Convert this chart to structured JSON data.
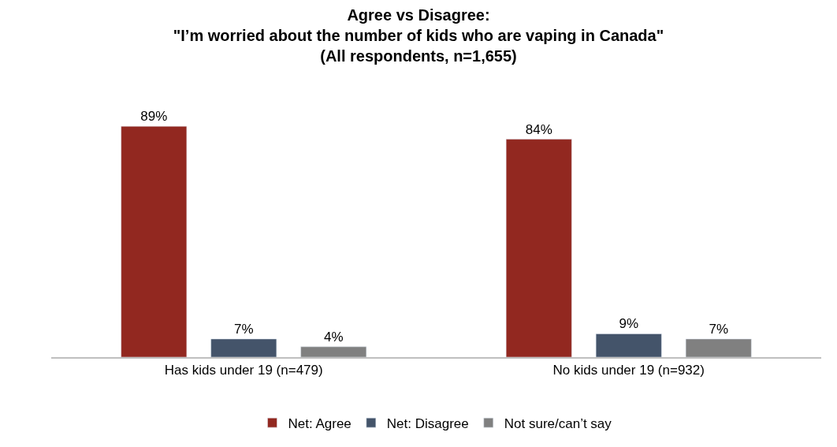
{
  "chart_data": {
    "type": "bar",
    "title": "Agree vs Disagree:\n\"I’m worried about the number of kids who are vaping in Canada\"\n(All respondents, n=1,655)",
    "categories": [
      "Has kids under 19 (n=479)",
      "No kids under 19 (n=932)"
    ],
    "series": [
      {
        "name": "Net: Agree",
        "color": "#922820",
        "values": [
          89,
          84
        ],
        "value_labels": [
          "89%",
          "84%"
        ]
      },
      {
        "name": "Net: Disagree",
        "color": "#44546a",
        "values": [
          7,
          9
        ],
        "value_labels": [
          "7%",
          "9%"
        ]
      },
      {
        "name": "Not sure/can’t say",
        "color": "#808080",
        "values": [
          4,
          7
        ],
        "value_labels": [
          "4%",
          "7%"
        ]
      }
    ],
    "legend": "bottom"
  }
}
